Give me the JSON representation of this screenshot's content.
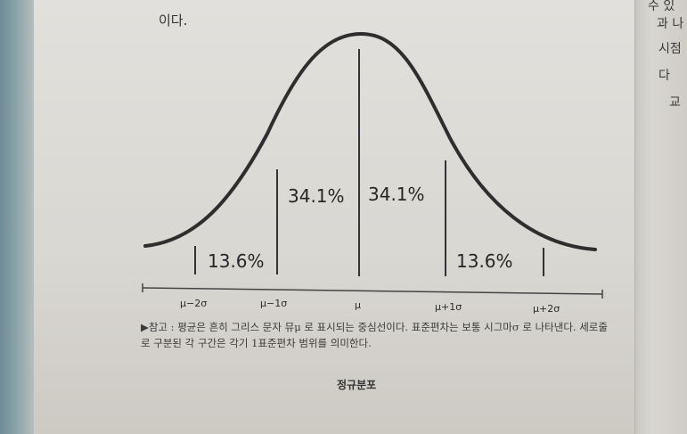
{
  "intro_text": "이다.",
  "figure": {
    "segments": [
      {
        "percent_label": "13.6%"
      },
      {
        "percent_label": "34.1%"
      },
      {
        "percent_label": "34.1%"
      },
      {
        "percent_label": "13.6%"
      }
    ],
    "axis_ticks": [
      "μ−2σ",
      "μ−1σ",
      "μ",
      "μ+1σ",
      "μ+2σ"
    ]
  },
  "caption": "▶참고 : 평균은 흔히 그리스 문자 뮤μ 로 표시되는 중심선이다. 표준편차는 보통 시그마σ 로 나타낸다. 세로줄로 구분된 각 구간은 각기 1표준편차 범위를 의미한다.",
  "figure_title": "정규분포",
  "next_page_text": [
    "수 있",
    "과 나",
    "시점",
    "다",
    "교"
  ],
  "colors": {
    "ink": "#2b2b2b",
    "paper": "#dddbd6"
  }
}
